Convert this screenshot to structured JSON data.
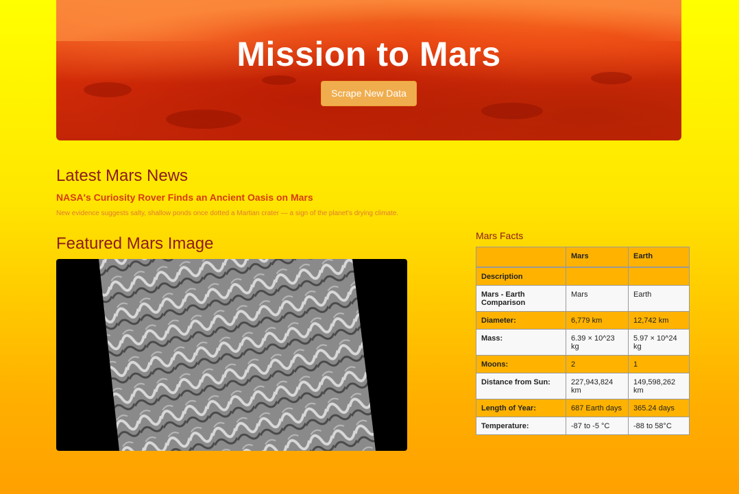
{
  "hero": {
    "title": "Mission to Mars",
    "button_label": "Scrape New Data"
  },
  "news": {
    "section_title": "Latest Mars News",
    "headline": "NASA's Curiosity Rover Finds an Ancient Oasis on Mars",
    "teaser": "New evidence suggests salty, shallow ponds once dotted a Martian crater — a sign of the planet's drying climate."
  },
  "featured_image": {
    "section_title": "Featured Mars Image"
  },
  "facts": {
    "section_title": "Mars Facts",
    "header": [
      "",
      "Mars",
      "Earth"
    ],
    "rows": [
      [
        "Description",
        "",
        ""
      ],
      [
        "Mars - Earth Comparison",
        "Mars",
        "Earth"
      ],
      [
        "Diameter:",
        "6,779 km",
        "12,742 km"
      ],
      [
        "Mass:",
        "6.39 × 10^23 kg",
        "5.97 × 10^24 kg"
      ],
      [
        "Moons:",
        "2",
        "1"
      ],
      [
        "Distance from Sun:",
        "227,943,824 km",
        "149,598,262 km"
      ],
      [
        "Length of Year:",
        "687 Earth days",
        "365.24 days"
      ],
      [
        "Temperature:",
        "-87 to -5 °C",
        "-88 to 58°C"
      ]
    ]
  },
  "colors": {
    "heading": "#8b1a1a",
    "headline": "#d63b12",
    "button": "#f0ad4e",
    "table_stripe": "#ffb300"
  }
}
